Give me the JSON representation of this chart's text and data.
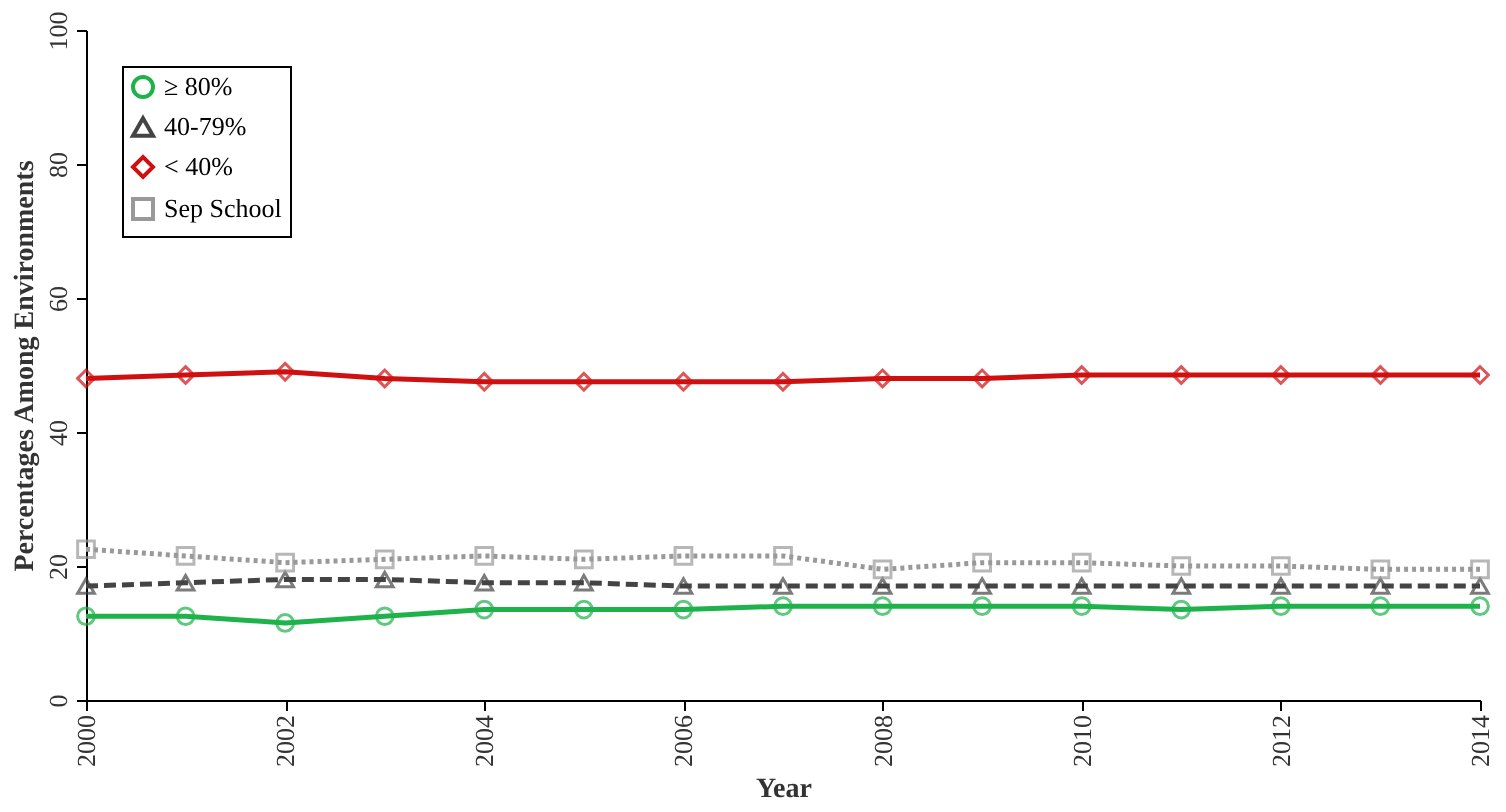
{
  "chart_data": {
    "type": "line",
    "xlabel": "Year",
    "ylabel": "Percentages Among Environments",
    "x": [
      2000,
      2001,
      2002,
      2003,
      2004,
      2005,
      2006,
      2007,
      2008,
      2009,
      2010,
      2011,
      2012,
      2013,
      2014
    ],
    "xlim": [
      2000,
      2014
    ],
    "xticks": [
      2000,
      2002,
      2004,
      2006,
      2008,
      2010,
      2012,
      2014
    ],
    "ylim": [
      0,
      100
    ],
    "yticks": [
      0,
      20,
      40,
      60,
      80,
      100
    ],
    "grid": false,
    "legend": "top left",
    "series": [
      {
        "name": "≥ 80%",
        "color": "#1db34a",
        "marker": "circle",
        "line_style": "solid",
        "values": [
          12.5,
          12.5,
          11.5,
          12.5,
          13.5,
          13.5,
          13.5,
          14,
          14,
          14,
          14,
          13.5,
          14,
          14,
          14
        ]
      },
      {
        "name": "40-79%",
        "color": "#444444",
        "marker": "triangle",
        "line_style": "dashed",
        "values": [
          17,
          17.5,
          18,
          18,
          17.5,
          17.5,
          17,
          17,
          17,
          17,
          17,
          17,
          17,
          17,
          17
        ]
      },
      {
        "name": "< 40%",
        "color": "#d01010",
        "marker": "diamond",
        "line_style": "solid",
        "values": [
          48,
          48.5,
          49,
          48,
          47.5,
          47.5,
          47.5,
          47.5,
          48,
          48,
          48.5,
          48.5,
          48.5,
          48.5,
          48.5
        ]
      },
      {
        "name": "Sep School",
        "color": "#999999",
        "marker": "square",
        "line_style": "dotted",
        "values": [
          22.5,
          21.5,
          20.5,
          21,
          21.5,
          21,
          21.5,
          21.5,
          19.5,
          20.5,
          20.5,
          20,
          20,
          19.5,
          19.5
        ]
      }
    ]
  }
}
